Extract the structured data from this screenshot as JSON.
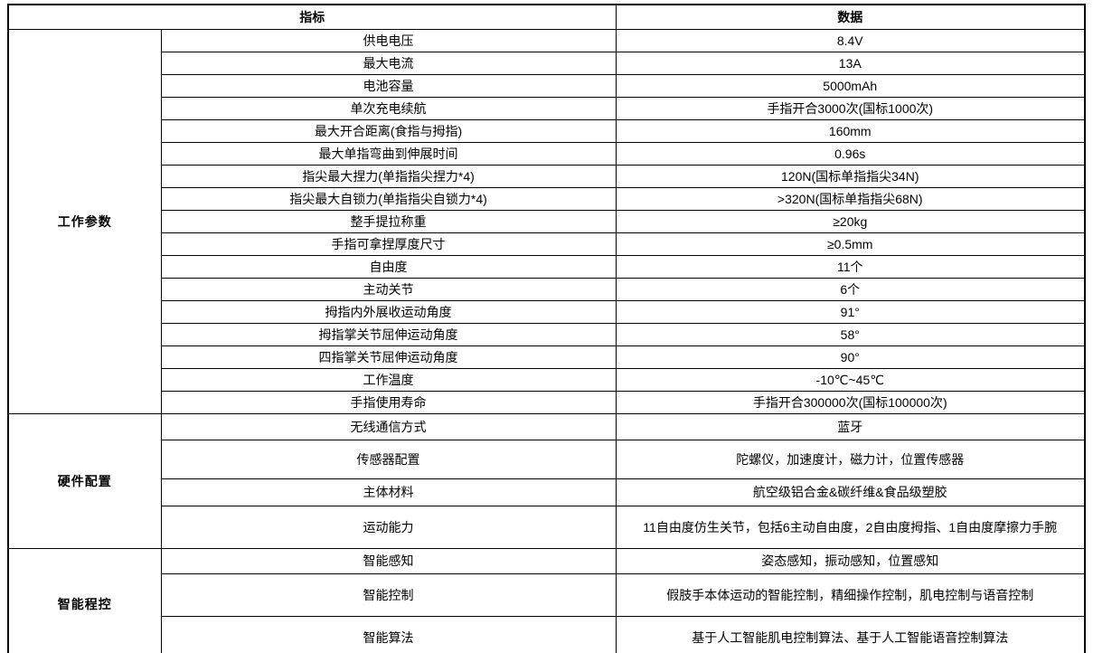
{
  "table": {
    "header": {
      "indicator": "指标",
      "data": "数据"
    },
    "sections": [
      {
        "group": "工作参数",
        "rows": [
          {
            "label": "供电电压",
            "value": "8.4V"
          },
          {
            "label": "最大电流",
            "value": "13A"
          },
          {
            "label": "电池容量",
            "value": "5000mAh"
          },
          {
            "label": "单次充电续航",
            "value": "手指开合3000次(国标1000次)"
          },
          {
            "label": "最大开合距离(食指与拇指)",
            "value": "160mm"
          },
          {
            "label": "最大单指弯曲到伸展时间",
            "value": "0.96s"
          },
          {
            "label": "指尖最大捏力(单指指尖捏力*4)",
            "value": "120N(国标单指指尖34N)"
          },
          {
            "label": "指尖最大自锁力(单指指尖自锁力*4)",
            "value": ">320N(国标单指指尖68N)"
          },
          {
            "label": "整手提拉称重",
            "value": "≥20kg"
          },
          {
            "label": "手指可拿捏厚度尺寸",
            "value": "≥0.5mm"
          },
          {
            "label": "自由度",
            "value": "11个"
          },
          {
            "label": "主动关节",
            "value": "6个"
          },
          {
            "label": "拇指内外展收运动角度",
            "value": "91°"
          },
          {
            "label": "拇指掌关节屈伸运动角度",
            "value": "58°"
          },
          {
            "label": "四指掌关节屈伸运动角度",
            "value": "90°"
          },
          {
            "label": "工作温度",
            "value": "-10℃~45℃"
          },
          {
            "label": "手指使用寿命",
            "value": "手指开合300000次(国标100000次)"
          }
        ]
      },
      {
        "group": "硬件配置",
        "rows": [
          {
            "label": "无线通信方式",
            "value": "蓝牙"
          },
          {
            "label": "传感器配置",
            "value": "陀螺仪，加速度计，磁力计，位置传感器"
          },
          {
            "label": "主体材料",
            "value": "航空级铝合金&碳纤维&食品级塑胶"
          },
          {
            "label": "运动能力",
            "value": "11自由度仿生关节，包括6主动自由度，2自由度拇指、1自由度摩擦力手腕"
          }
        ]
      },
      {
        "group": "智能程控",
        "rows": [
          {
            "label": "智能感知",
            "value": "姿态感知，振动感知，位置感知"
          },
          {
            "label": "智能控制",
            "value": "假肢手本体运动的智能控制，精细操作控制，肌电控制与语音控制"
          },
          {
            "label": "智能算法",
            "value": "基于人工智能肌电控制算法、基于人工智能语音控制算法"
          }
        ]
      }
    ]
  },
  "colors": {
    "border": "#000000",
    "text": "#000000",
    "background": "#ffffff"
  }
}
